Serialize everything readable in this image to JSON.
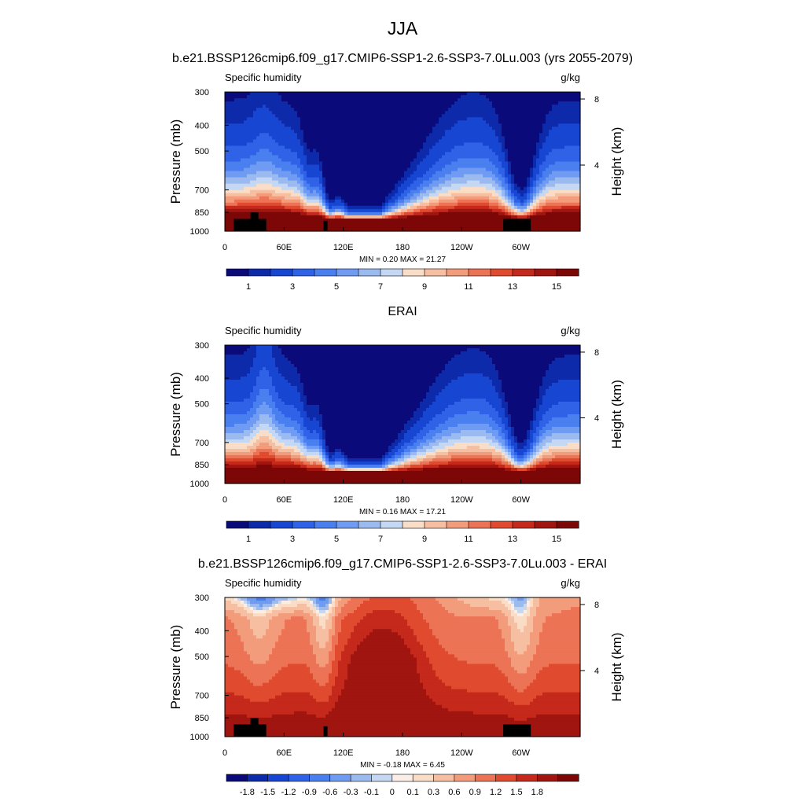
{
  "figure": {
    "title": "JJA"
  },
  "colors": {
    "humidity_ramp": [
      "#0a0a7a",
      "#0d2aaa",
      "#1746d2",
      "#2f62e6",
      "#4a7ff0",
      "#6f9cf2",
      "#9bbaf0",
      "#c4d7f3",
      "#f9ddc6",
      "#f6bfa2",
      "#f29c7c",
      "#ec7355",
      "#e04a2e",
      "#c5291b",
      "#a01510",
      "#7d0706"
    ],
    "diff_ramp": [
      "#0a0a7a",
      "#0d2aaa",
      "#1746d2",
      "#2f62e6",
      "#4a7ff0",
      "#6f9cf2",
      "#9bbaf0",
      "#c4d7f3",
      "#fbeee6",
      "#f9ddc6",
      "#f6bfa2",
      "#f29c7c",
      "#ec7355",
      "#e04a2e",
      "#c5291b",
      "#a01510",
      "#7d0706"
    ],
    "land": "#000000"
  },
  "chart_data": [
    {
      "type": "heatmap",
      "title": "b.e21.BSSP126cmip6.f09_g17.CMIP6-SSP1-2.6-SSP3-7.0Lu.003 (yrs 2055-2079)",
      "left_label": "Specific humidity",
      "right_label": "g/kg",
      "ylabel": "Pressure (mb)",
      "ylabel_right": "Height (km)",
      "x_ticks": [
        "0",
        "60E",
        "120E",
        "180",
        "120W",
        "60W"
      ],
      "x_tick_lon": [
        0,
        60,
        120,
        180,
        240,
        300
      ],
      "xlim": [
        0,
        360
      ],
      "y_ticks": [
        "300",
        "400",
        "500",
        "700",
        "850",
        "1000"
      ],
      "y_tick_p": [
        300,
        400,
        500,
        700,
        850,
        1000
      ],
      "ylim": [
        1000,
        300
      ],
      "log_scale_y": true,
      "height_ticks": [
        "8",
        "4"
      ],
      "height_tick_km": [
        8,
        4
      ],
      "stats": "MIN =   0.20  MAX =  21.27",
      "min": 0.2,
      "max": 21.27,
      "colorbar_labels": [
        "1",
        "3",
        "5",
        "7",
        "9",
        "11",
        "13",
        "15"
      ],
      "levels": [
        0.5,
        1,
        2,
        3,
        4,
        5,
        6,
        7,
        8,
        9,
        10,
        11,
        12,
        13,
        14,
        15
      ],
      "field": "humidity",
      "topography_lon_p": [
        [
          9,
          900
        ],
        [
          26,
          900
        ],
        [
          26,
          850
        ],
        [
          34,
          850
        ],
        [
          34,
          900
        ],
        [
          42,
          900
        ],
        [
          42,
          1000
        ],
        [
          9,
          1000
        ],
        [
          100,
          1000
        ],
        [
          100,
          915
        ],
        [
          104,
          915
        ],
        [
          104,
          1000
        ],
        [
          282,
          1000
        ],
        [
          282,
          900
        ],
        [
          310,
          900
        ],
        [
          310,
          1000
        ]
      ]
    },
    {
      "type": "heatmap",
      "title": "ERAI",
      "left_label": "Specific humidity",
      "right_label": "g/kg",
      "ylabel": "Pressure (mb)",
      "ylabel_right": "Height (km)",
      "x_ticks": [
        "0",
        "60E",
        "120E",
        "180",
        "120W",
        "60W"
      ],
      "x_tick_lon": [
        0,
        60,
        120,
        180,
        240,
        300
      ],
      "xlim": [
        0,
        360
      ],
      "y_ticks": [
        "300",
        "400",
        "500",
        "700",
        "850",
        "1000"
      ],
      "y_tick_p": [
        300,
        400,
        500,
        700,
        850,
        1000
      ],
      "ylim": [
        1000,
        300
      ],
      "log_scale_y": true,
      "height_ticks": [
        "8",
        "4"
      ],
      "height_tick_km": [
        8,
        4
      ],
      "stats": "MIN =   0.16  MAX =  17.21",
      "min": 0.16,
      "max": 17.21,
      "colorbar_labels": [
        "1",
        "3",
        "5",
        "7",
        "9",
        "11",
        "13",
        "15"
      ],
      "levels": [
        0.5,
        1,
        2,
        3,
        4,
        5,
        6,
        7,
        8,
        9,
        10,
        11,
        12,
        13,
        14,
        15
      ],
      "field": "humidity_obs"
    },
    {
      "type": "heatmap",
      "title": "b.e21.BSSP126cmip6.f09_g17.CMIP6-SSP1-2.6-SSP3-7.0Lu.003 - ERAI",
      "left_label": "Specific humidity",
      "right_label": "g/kg",
      "ylabel": "Pressure (mb)",
      "ylabel_right": "Height (km)",
      "x_ticks": [
        "0",
        "60E",
        "120E",
        "180",
        "120W",
        "60W"
      ],
      "x_tick_lon": [
        0,
        60,
        120,
        180,
        240,
        300
      ],
      "xlim": [
        0,
        360
      ],
      "y_ticks": [
        "300",
        "400",
        "500",
        "700",
        "850",
        "1000"
      ],
      "y_tick_p": [
        300,
        400,
        500,
        700,
        850,
        1000
      ],
      "ylim": [
        1000,
        300
      ],
      "log_scale_y": true,
      "height_ticks": [
        "8",
        "4"
      ],
      "height_tick_km": [
        8,
        4
      ],
      "stats": "MIN =  -0.18  MAX =   6.45",
      "min": -0.18,
      "max": 6.45,
      "colorbar_labels": [
        "-1.8",
        "-1.5",
        "-1.2",
        "-0.9",
        "-0.6",
        "-0.3",
        "-0.1",
        "0",
        "0.1",
        "0.3",
        "0.6",
        "0.9",
        "1.2",
        "1.5",
        "1.8"
      ],
      "levels": [
        -1.8,
        -1.5,
        -1.2,
        -0.9,
        -0.6,
        -0.3,
        -0.1,
        0,
        0.1,
        0.3,
        0.6,
        0.9,
        1.2,
        1.5,
        1.8
      ],
      "field": "difference",
      "topography_lon_p": [
        [
          9,
          900
        ],
        [
          26,
          900
        ],
        [
          26,
          850
        ],
        [
          34,
          850
        ],
        [
          34,
          900
        ],
        [
          42,
          900
        ],
        [
          42,
          1000
        ],
        [
          9,
          1000
        ],
        [
          100,
          1000
        ],
        [
          100,
          915
        ],
        [
          104,
          915
        ],
        [
          104,
          1000
        ],
        [
          282,
          1000
        ],
        [
          282,
          900
        ],
        [
          310,
          900
        ],
        [
          310,
          1000
        ]
      ]
    }
  ]
}
